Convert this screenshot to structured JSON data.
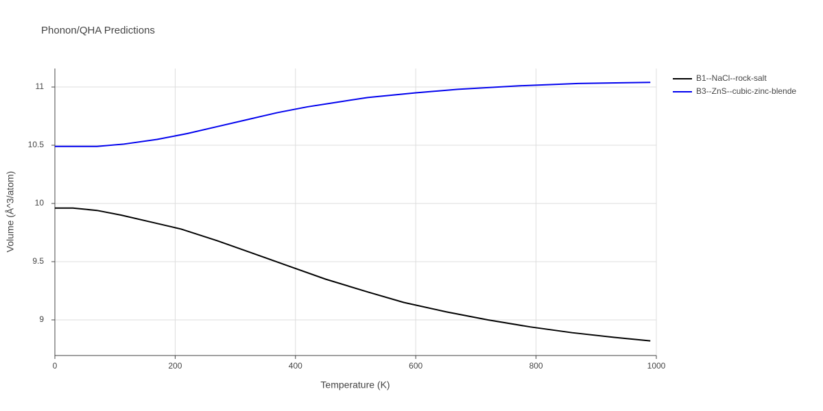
{
  "chart_data": {
    "type": "line",
    "title": "Phonon/QHA Predictions",
    "x_label": "Temperature (K)",
    "y_label": "Volume (Å^3/atom)",
    "xlim": [
      0,
      1000
    ],
    "ylim": [
      8.694,
      11.159
    ],
    "xticks": [
      0,
      200,
      400,
      600,
      800,
      1000
    ],
    "yticks": [
      9,
      9.5,
      10,
      10.5,
      11
    ],
    "grid": true,
    "legend": "right",
    "series": [
      {
        "name": "B1--NaCl--rock-salt",
        "color": "#000000",
        "x": [
          0,
          30,
          70,
          110,
          160,
          210,
          270,
          330,
          390,
          450,
          520,
          580,
          650,
          720,
          790,
          860,
          930,
          990
        ],
        "values": [
          9.96,
          9.96,
          9.94,
          9.9,
          9.84,
          9.78,
          9.68,
          9.57,
          9.46,
          9.35,
          9.24,
          9.15,
          9.07,
          9.0,
          8.94,
          8.89,
          8.85,
          8.82
        ]
      },
      {
        "name": "B3--ZnS--cubic-zinc-blende",
        "color": "#0000ee",
        "x": [
          0,
          70,
          115,
          170,
          220,
          270,
          320,
          370,
          420,
          470,
          520,
          600,
          670,
          770,
          870,
          990
        ],
        "values": [
          10.49,
          10.49,
          10.51,
          10.55,
          10.6,
          10.66,
          10.72,
          10.78,
          10.83,
          10.87,
          10.91,
          10.95,
          10.98,
          11.01,
          11.03,
          11.04
        ]
      }
    ]
  }
}
